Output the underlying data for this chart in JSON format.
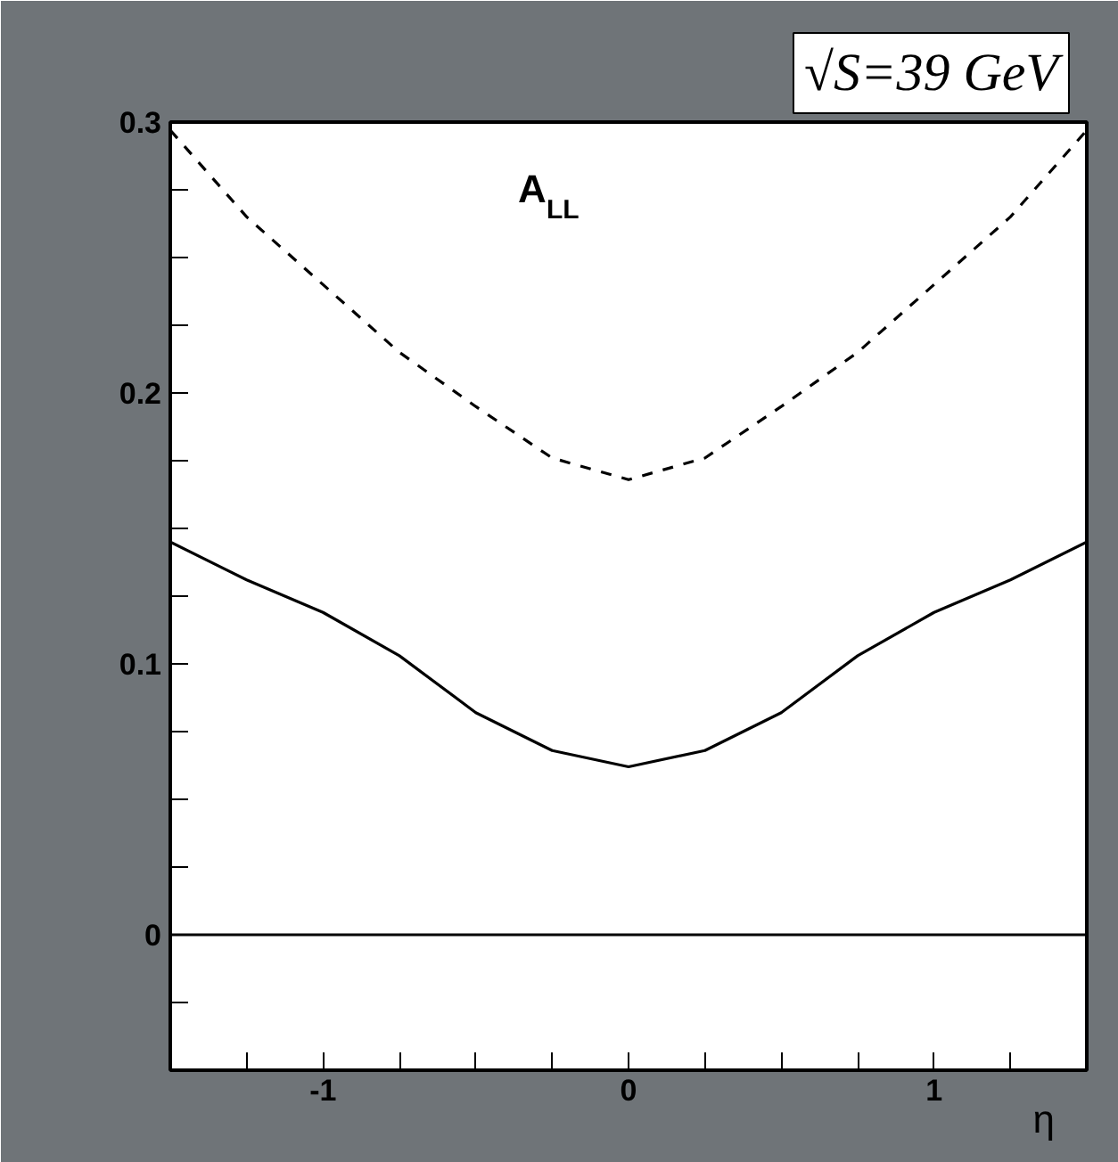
{
  "chart_data": {
    "type": "line",
    "xlabel": "η",
    "x": [
      -1.5,
      -1.25,
      -1,
      -0.75,
      -0.5,
      -0.25,
      0,
      0.25,
      0.5,
      0.75,
      1,
      1.25,
      1.5
    ],
    "series": [
      {
        "color": "#000000",
        "line_style": "dashed",
        "values": [
          0.297,
          0.265,
          0.24,
          0.215,
          0.195,
          0.176,
          0.168,
          0.176,
          0.195,
          0.215,
          0.24,
          0.265,
          0.297
        ]
      },
      {
        "color": "#000000",
        "line_style": "solid",
        "values": [
          0.145,
          0.131,
          0.119,
          0.103,
          0.082,
          0.068,
          0.062,
          0.068,
          0.082,
          0.103,
          0.119,
          0.131,
          0.145
        ]
      }
    ],
    "xlim": [
      -1.5,
      1.5
    ],
    "ylim": [
      -0.05,
      0.3
    ],
    "xticks": [
      {
        "value": -1.5,
        "label": null
      },
      {
        "value": -1.25,
        "label": null
      },
      -1,
      {
        "value": -0.75,
        "label": null
      },
      {
        "value": -0.5,
        "label": null
      },
      {
        "value": -0.25,
        "label": null
      },
      0,
      {
        "value": 0.25,
        "label": null
      },
      {
        "value": 0.5,
        "label": null
      },
      {
        "value": 0.75,
        "label": null
      },
      1,
      {
        "value": 1.25,
        "label": null
      },
      {
        "value": 1.5,
        "label": null
      }
    ],
    "yticks": [
      {
        "value": -0.05,
        "label": null
      },
      {
        "value": -0.025,
        "label": null
      },
      0,
      {
        "value": 0.025,
        "label": null
      },
      {
        "value": 0.05,
        "label": null
      },
      {
        "value": 0.075,
        "label": null
      },
      0.1,
      {
        "value": 0.125,
        "label": null
      },
      {
        "value": 0.15,
        "label": null
      },
      {
        "value": 0.175,
        "label": null
      },
      0.2,
      {
        "value": 0.225,
        "label": null
      },
      {
        "value": 0.25,
        "label": null
      },
      {
        "value": 0.275,
        "label": null
      },
      0.3
    ],
    "ref_lines": [
      {
        "axis": "y",
        "value": 0,
        "color": "#000000",
        "line_style": "solid"
      }
    ],
    "annotations": [
      "A$_{LL}$",
      "√S=39 GeV"
    ],
    "grid": false
  }
}
